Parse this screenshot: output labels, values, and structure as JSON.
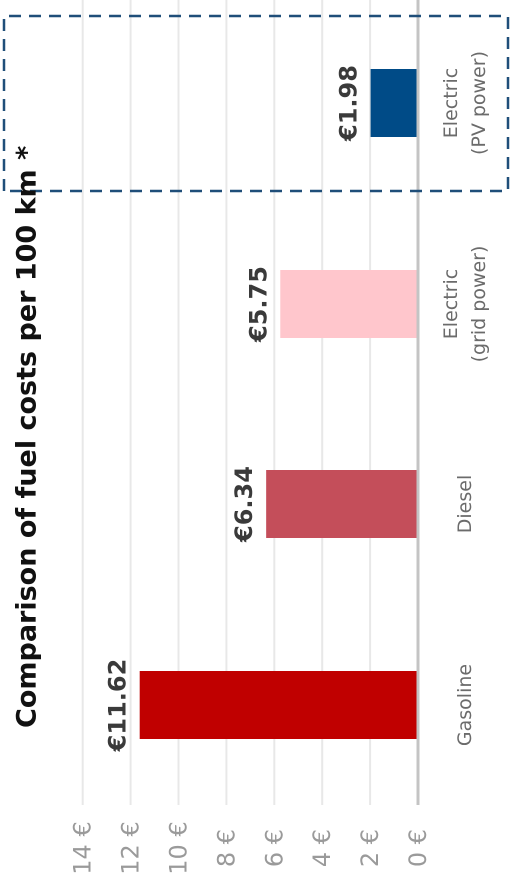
{
  "chart_data": {
    "type": "bar",
    "orientation": "horizontal",
    "title": "Comparison of fuel costs per 100 km *",
    "categories": [
      [
        "Gasoline"
      ],
      [
        "Diesel"
      ],
      [
        "Electric",
        "(grid power)"
      ],
      [
        "Electric",
        "(PV power)"
      ]
    ],
    "values": [
      11.62,
      6.34,
      5.75,
      1.98
    ],
    "value_labels": [
      "€11.62",
      "€6.34",
      "€5.75",
      "€1.98"
    ],
    "colors": [
      "#c00000",
      "#c44e5a",
      "#ffc6cc",
      "#004b87"
    ],
    "axis": {
      "range": [
        0,
        14
      ],
      "ticks": [
        0,
        2,
        4,
        6,
        8,
        10,
        12,
        14
      ],
      "tick_labels": [
        "0 €",
        "2 €",
        "4 €",
        "6 €",
        "8 €",
        "10 €",
        "12 €",
        "14 €"
      ],
      "grid": true
    },
    "highlight": {
      "category_index": 3,
      "style": "dashed-box",
      "color": "#1f4e79"
    }
  }
}
